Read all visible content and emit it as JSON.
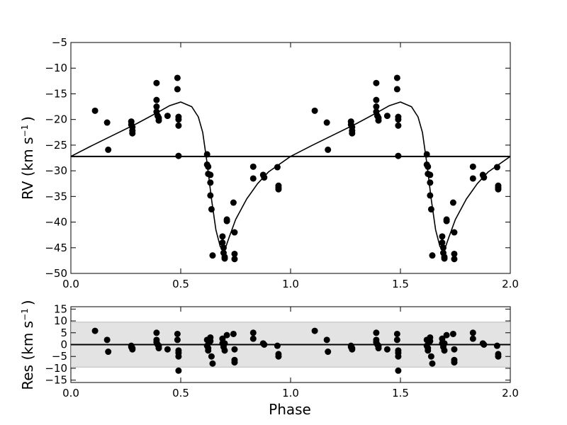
{
  "chart_data": [
    {
      "type": "scatter",
      "panel": "radial velocity",
      "ylabel_main": "RV (km s",
      "ylabel_sup": "−1",
      "ylabel_close": ")",
      "xlim": [
        0.0,
        2.0
      ],
      "ylim": [
        -50,
        -5
      ],
      "x_ticks": [
        "0.0",
        "0.5",
        "1.0",
        "1.5",
        "2.0"
      ],
      "y_ticks": [
        "−5",
        "−10",
        "−15",
        "−20",
        "−25",
        "−30",
        "−35",
        "−40",
        "−45",
        "−50"
      ],
      "systemic_velocity": -27.2,
      "model_curve": {
        "phase": [
          0.0,
          0.1,
          0.2,
          0.3,
          0.4,
          0.45,
          0.5,
          0.55,
          0.58,
          0.6,
          0.62,
          0.64,
          0.66,
          0.68,
          0.7,
          0.72,
          0.75,
          0.8,
          0.85,
          0.9,
          1.0
        ],
        "rv": [
          -27.2,
          -25.0,
          -22.9,
          -20.8,
          -18.5,
          -17.3,
          -16.6,
          -17.5,
          -19.5,
          -22.5,
          -28.5,
          -35.5,
          -41.5,
          -44.8,
          -45.5,
          -43.0,
          -39.5,
          -35.5,
          -32.5,
          -30.2,
          -27.2
        ]
      },
      "series": [
        {
          "name": "",
          "phase": [
            0.11,
            0.165,
            0.17,
            0.275,
            0.275,
            0.28,
            0.28,
            0.28,
            0.39,
            0.39,
            0.39,
            0.39,
            0.395,
            0.4,
            0.4,
            0.44,
            0.485,
            0.485,
            0.49,
            0.49,
            0.49,
            0.49,
            0.62,
            0.62,
            0.625,
            0.625,
            0.635,
            0.635,
            0.635,
            0.64,
            0.645,
            0.69,
            0.69,
            0.695,
            0.695,
            0.7,
            0.7,
            0.71,
            0.71,
            0.74,
            0.745,
            0.745,
            0.745,
            0.83,
            0.83,
            0.875,
            0.88,
            0.94,
            0.945,
            0.945,
            0.945
          ],
          "rv": [
            -18.3,
            -20.6,
            -25.9,
            -20.4,
            -21.0,
            -21.5,
            -22.2,
            -22.7,
            -12.9,
            -16.2,
            -17.5,
            -18.5,
            -19.3,
            -19.7,
            -20.2,
            -19.3,
            -11.9,
            -14.1,
            -19.5,
            -20.0,
            -21.2,
            -27.1,
            -26.8,
            -28.8,
            -29.2,
            -30.6,
            -30.8,
            -32.3,
            -34.8,
            -37.5,
            -46.5,
            -42.8,
            -44.0,
            -45.0,
            -46.0,
            -46.8,
            -47.1,
            -39.5,
            -39.8,
            -36.2,
            -42.0,
            -46.2,
            -47.2,
            -29.2,
            -31.5,
            -30.8,
            -31.3,
            -29.3,
            -32.9,
            -33.3,
            -33.6
          ]
        }
      ]
    },
    {
      "type": "scatter",
      "panel": "residuals",
      "ylabel_main": "Res (km s",
      "ylabel_sup": "−1",
      "ylabel_close": ")",
      "xlabel": "Phase",
      "xlim": [
        0.0,
        2.0
      ],
      "ylim": [
        -16,
        16
      ],
      "x_ticks": [
        "0.0",
        "0.5",
        "1.0",
        "1.5",
        "2.0"
      ],
      "y_ticks": [
        "15",
        "10",
        "5",
        "0",
        "−5",
        "−10",
        "−15"
      ],
      "band": [
        -9.5,
        9.5
      ],
      "series": [
        {
          "name": "",
          "phase": [
            0.11,
            0.165,
            0.17,
            0.275,
            0.275,
            0.28,
            0.28,
            0.39,
            0.39,
            0.39,
            0.395,
            0.4,
            0.4,
            0.44,
            0.485,
            0.485,
            0.49,
            0.49,
            0.49,
            0.49,
            0.62,
            0.62,
            0.625,
            0.625,
            0.635,
            0.635,
            0.64,
            0.645,
            0.69,
            0.69,
            0.695,
            0.7,
            0.7,
            0.71,
            0.74,
            0.745,
            0.745,
            0.745,
            0.83,
            0.83,
            0.875,
            0.88,
            0.94,
            0.945,
            0.945
          ],
          "rv": [
            5.8,
            2.0,
            -3.0,
            -0.5,
            -1.0,
            -1.5,
            -2.0,
            5.0,
            2.0,
            1.0,
            0.0,
            -0.5,
            -1.5,
            -2.0,
            4.5,
            2.0,
            -2.5,
            -3.5,
            -5.0,
            -11.0,
            2.0,
            -0.5,
            -1.5,
            -2.5,
            3.0,
            1.5,
            -5.0,
            -8.0,
            2.5,
            0.5,
            -1.0,
            -2.5,
            0.5,
            4.0,
            4.5,
            -2.0,
            -6.5,
            -7.5,
            5.0,
            2.5,
            0.5,
            0.0,
            -0.5,
            -4.0,
            -5.0
          ]
        }
      ]
    }
  ]
}
